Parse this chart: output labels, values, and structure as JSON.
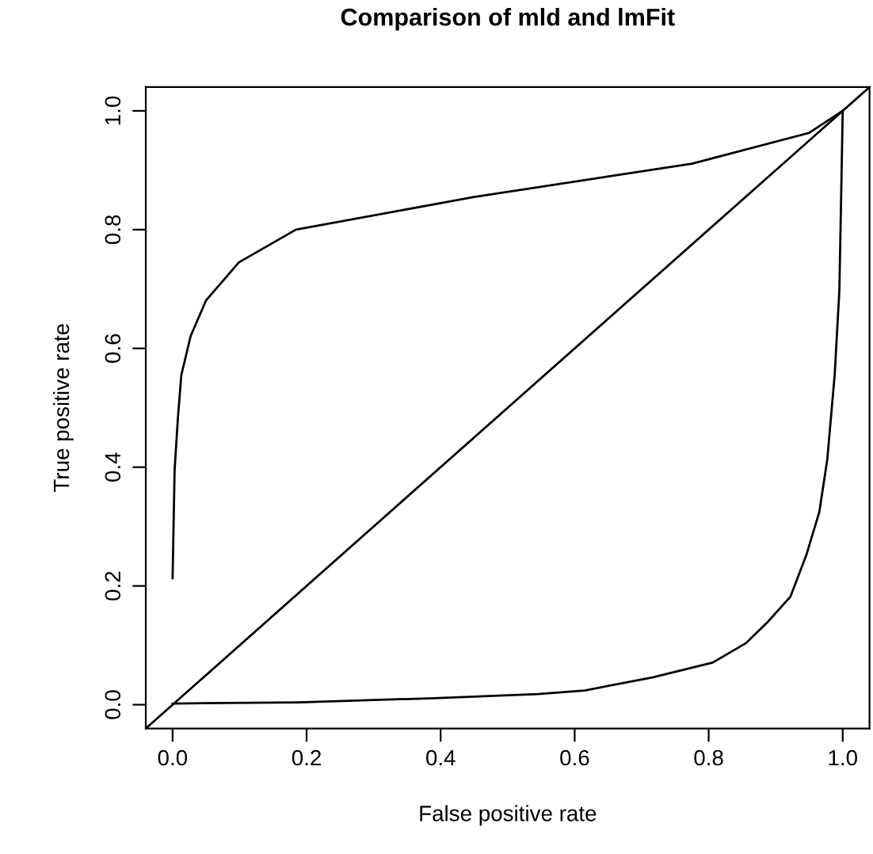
{
  "chart_data": {
    "type": "line",
    "title": "Comparison of mld and lmFit",
    "xlabel": "False positive rate",
    "ylabel": "True positive rate",
    "xlim": [
      -0.04,
      1.04
    ],
    "ylim": [
      -0.04,
      1.04
    ],
    "xticks": [
      {
        "value": 0,
        "label": "0.0"
      },
      0.2,
      0.4,
      0.6,
      0.8,
      {
        "value": 1,
        "label": "1.0"
      }
    ],
    "yticks": [
      {
        "value": 0,
        "label": "0.0"
      },
      0.2,
      0.4,
      0.6,
      0.8,
      {
        "value": 1,
        "label": "1.0"
      }
    ],
    "grid": false,
    "legend": false,
    "series": [
      {
        "color": "#000000",
        "x": [
          0,
          0.003,
          0.008,
          0.013,
          0.027,
          0.05,
          0.099,
          0.184,
          0.45,
          0.775,
          0.95,
          1
        ],
        "values": [
          0.213,
          0.395,
          0.484,
          0.555,
          0.621,
          0.681,
          0.745,
          0.8,
          0.855,
          0.911,
          0.963,
          1
        ]
      },
      {
        "color": "#000000",
        "x": [
          0,
          0.188,
          0.39,
          0.545,
          0.615,
          0.716,
          0.806,
          0.856,
          0.887,
          0.922,
          0.946,
          0.965,
          0.977,
          0.988,
          0.995,
          0.998,
          1
        ],
        "values": [
          0.002,
          0.004,
          0.011,
          0.018,
          0.024,
          0.046,
          0.071,
          0.104,
          0.138,
          0.182,
          0.253,
          0.324,
          0.413,
          0.555,
          0.697,
          0.874,
          1
        ]
      },
      {
        "color": "#000000",
        "x": [
          -0.04,
          1.04
        ],
        "values": [
          -0.04,
          1.04
        ]
      }
    ]
  }
}
